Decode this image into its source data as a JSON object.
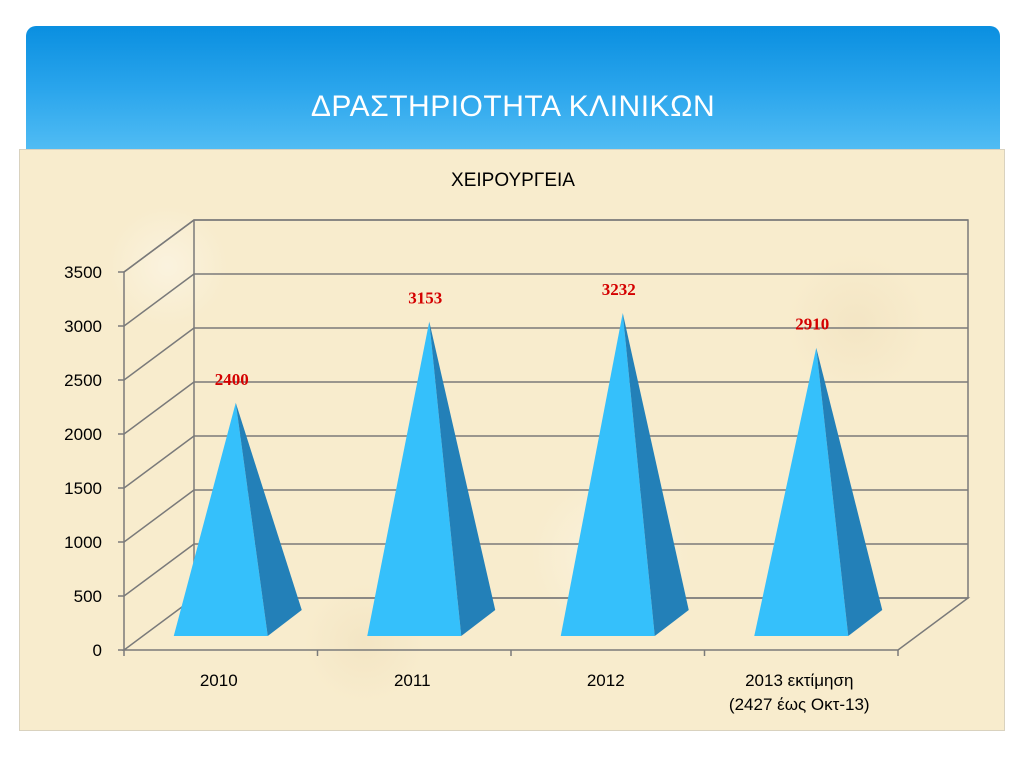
{
  "slide": {
    "title": "ΔΡΑΣΤΗΡΙΟΤΗΤΑ ΚΛΙΝΙΚΩΝ"
  },
  "colors": {
    "header_top": "#0a8fe0",
    "header_bottom": "#52bdf4",
    "pyramid_front": "#35c0fb",
    "pyramid_side": "#2380b8",
    "data_label": "#d40000",
    "gridline": "#7a7a7a"
  },
  "chart_data": {
    "type": "bar",
    "bar_shape": "pyramid-3d",
    "title": "ΧΕΙΡΟΥΡΓΕΙΑ",
    "categories": [
      [
        "2010"
      ],
      [
        "2011"
      ],
      [
        "2012"
      ],
      [
        "2013 εκτίμηση",
        "(2427 έως Οκτ-13)"
      ]
    ],
    "values": [
      2400,
      3153,
      3232,
      2910
    ],
    "data_labels": [
      "2400",
      "3153",
      "3232",
      "2910"
    ],
    "ylim": [
      0,
      3500
    ],
    "yticks": [
      0,
      500,
      1000,
      1500,
      2000,
      2500,
      3000,
      3500
    ],
    "grid": true,
    "legend": "none"
  }
}
